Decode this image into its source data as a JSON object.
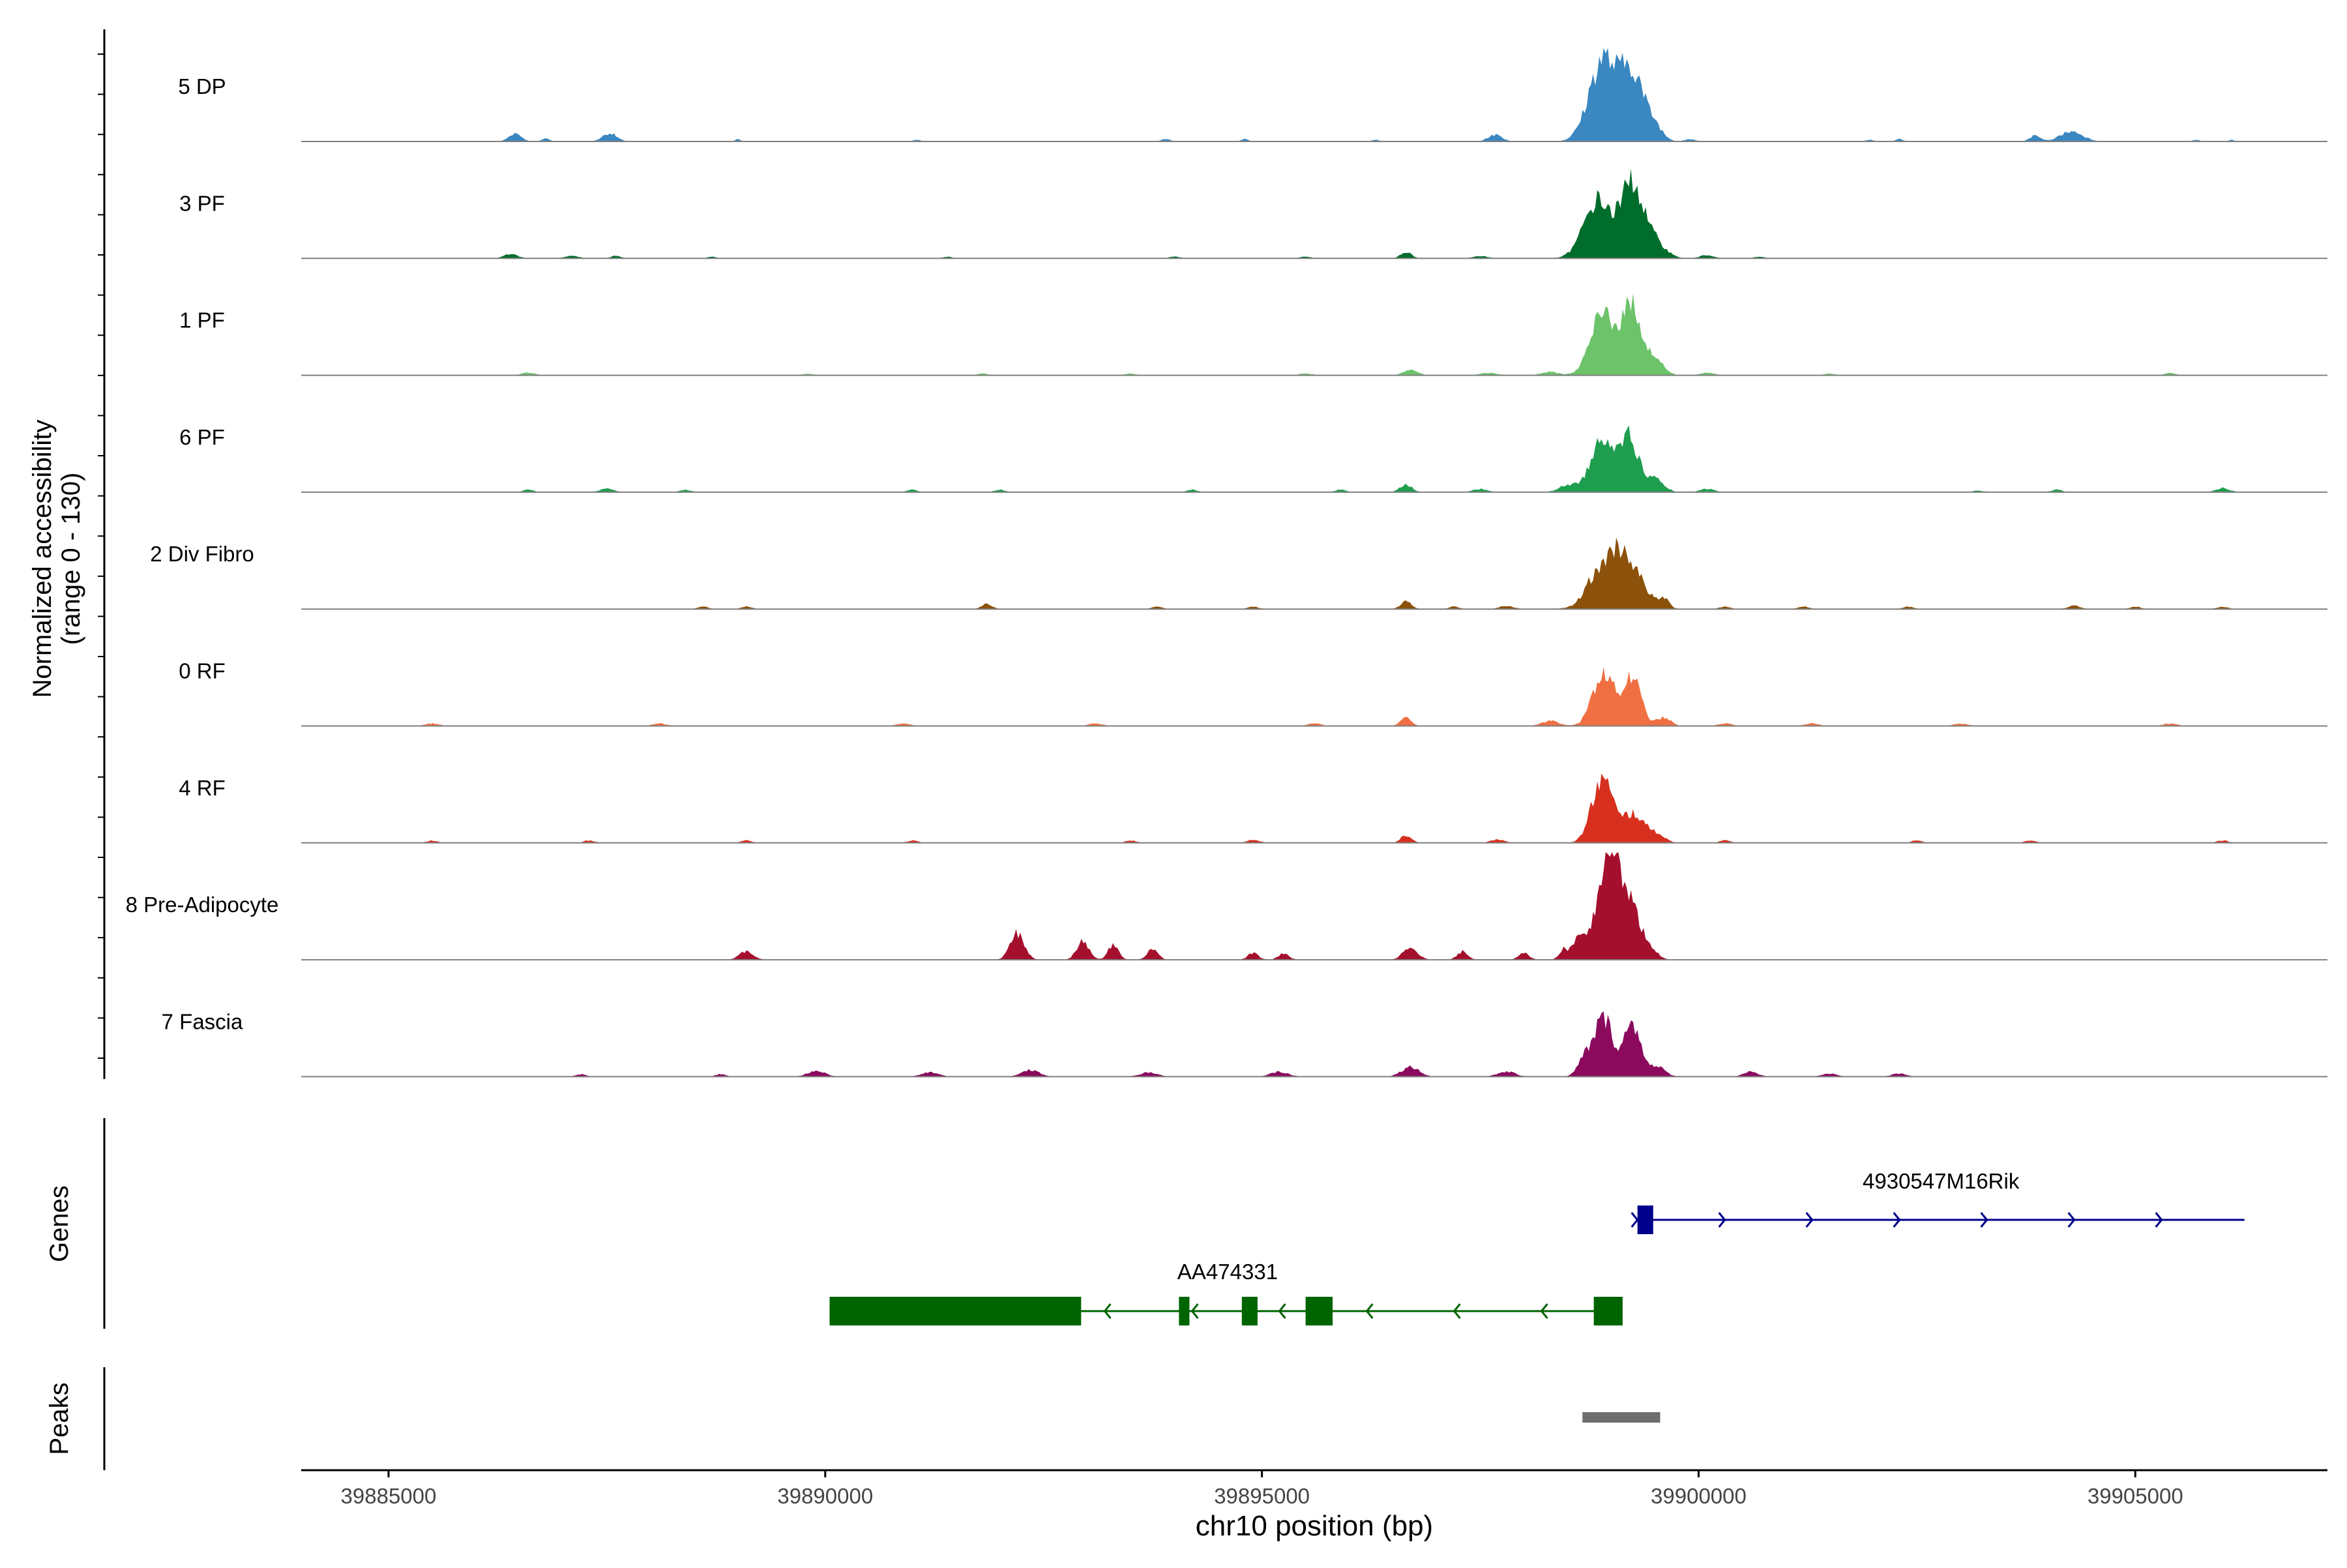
{
  "chart_data": {
    "type": "area",
    "title": "",
    "ylabel_line1": "Normalized accessibility",
    "ylabel_line2": "(range 0 - 130)",
    "genes_label": "Genes",
    "peaks_label": "Peaks",
    "xlabel": "chr10 position (bp)",
    "xlim": [
      39884000,
      39907200
    ],
    "ylim": [
      0,
      130
    ],
    "xticks": [
      39885000,
      39890000,
      39895000,
      39900000,
      39905000
    ],
    "tracks": [
      {
        "name": "5 DP",
        "color": "#3a87c1",
        "peaks": [
          [
            39898910,
            100,
            160
          ],
          [
            39899240,
            80,
            120
          ],
          [
            39899480,
            20,
            100
          ],
          [
            39886450,
            10,
            70
          ],
          [
            39887530,
            10,
            80
          ],
          [
            39897670,
            8,
            80
          ],
          [
            39904270,
            12,
            130
          ],
          [
            39903850,
            7,
            60
          ],
          [
            39886800,
            4,
            40
          ],
          [
            39889000,
            3,
            30
          ],
          [
            39891050,
            2,
            40
          ],
          [
            39893900,
            3,
            50
          ],
          [
            39894800,
            3,
            40
          ],
          [
            39896300,
            2,
            40
          ],
          [
            39899900,
            3,
            60
          ],
          [
            39901950,
            2,
            50
          ],
          [
            39902300,
            3,
            40
          ],
          [
            39905700,
            2,
            40
          ],
          [
            39906100,
            2,
            30
          ]
        ]
      },
      {
        "name": "3 PF",
        "color": "#006d2c",
        "peaks": [
          [
            39898850,
            70,
            160
          ],
          [
            39899240,
            90,
            120
          ],
          [
            39899500,
            20,
            120
          ],
          [
            39896650,
            8,
            60
          ],
          [
            39886400,
            5,
            80
          ],
          [
            39887100,
            3,
            80
          ],
          [
            39887600,
            3,
            60
          ],
          [
            39888700,
            2,
            50
          ],
          [
            39891400,
            2,
            50
          ],
          [
            39894000,
            2,
            60
          ],
          [
            39895500,
            2,
            60
          ],
          [
            39897500,
            3,
            80
          ],
          [
            39900100,
            4,
            80
          ],
          [
            39900700,
            2,
            60
          ]
        ]
      },
      {
        "name": "1 PF",
        "color": "#6cc36a",
        "peaks": [
          [
            39898910,
            75,
            140
          ],
          [
            39899240,
            80,
            110
          ],
          [
            39899500,
            18,
            100
          ],
          [
            39898300,
            4,
            100
          ],
          [
            39896700,
            7,
            80
          ],
          [
            39886600,
            3,
            80
          ],
          [
            39889800,
            2,
            60
          ],
          [
            39891800,
            2,
            60
          ],
          [
            39893500,
            2,
            60
          ],
          [
            39895500,
            2,
            80
          ],
          [
            39897600,
            3,
            100
          ],
          [
            39900100,
            3,
            80
          ],
          [
            39901500,
            2,
            60
          ],
          [
            39905400,
            3,
            60
          ]
        ]
      },
      {
        "name": "6 PF",
        "color": "#1f9e4f",
        "peaks": [
          [
            39898910,
            65,
            140
          ],
          [
            39899210,
            60,
            110
          ],
          [
            39899500,
            15,
            100
          ],
          [
            39898500,
            8,
            100
          ],
          [
            39896650,
            9,
            70
          ],
          [
            39887500,
            5,
            70
          ],
          [
            39886600,
            3,
            60
          ],
          [
            39888400,
            3,
            60
          ],
          [
            39891000,
            3,
            60
          ],
          [
            39892000,
            3,
            60
          ],
          [
            39894200,
            3,
            60
          ],
          [
            39895900,
            3,
            60
          ],
          [
            39897500,
            4,
            80
          ],
          [
            39900100,
            4,
            80
          ],
          [
            39903200,
            2,
            60
          ],
          [
            39904100,
            3,
            60
          ],
          [
            39906000,
            5,
            80
          ]
        ]
      },
      {
        "name": "2 Div Fibro",
        "color": "#8c510a",
        "peaks": [
          [
            39899080,
            75,
            220
          ],
          [
            39898750,
            10,
            80
          ],
          [
            39899610,
            10,
            50
          ],
          [
            39896650,
            10,
            60
          ],
          [
            39891850,
            6,
            60
          ],
          [
            39888600,
            3,
            60
          ],
          [
            39889100,
            3,
            60
          ],
          [
            39893800,
            3,
            60
          ],
          [
            39894900,
            3,
            60
          ],
          [
            39897200,
            3,
            60
          ],
          [
            39897800,
            4,
            80
          ],
          [
            39900300,
            3,
            60
          ],
          [
            39901200,
            3,
            60
          ],
          [
            39902400,
            3,
            60
          ],
          [
            39904300,
            4,
            70
          ],
          [
            39905000,
            3,
            60
          ],
          [
            39906000,
            3,
            60
          ]
        ]
      },
      {
        "name": "0 RF",
        "color": "#f07043",
        "peaks": [
          [
            39898910,
            65,
            120
          ],
          [
            39899240,
            58,
            100
          ],
          [
            39899600,
            10,
            80
          ],
          [
            39898300,
            6,
            100
          ],
          [
            39896650,
            10,
            60
          ],
          [
            39885500,
            3,
            80
          ],
          [
            39888100,
            3,
            80
          ],
          [
            39890900,
            3,
            80
          ],
          [
            39893100,
            3,
            80
          ],
          [
            39895600,
            3,
            80
          ],
          [
            39900300,
            3,
            80
          ],
          [
            39901300,
            3,
            80
          ],
          [
            39903000,
            3,
            80
          ],
          [
            39905400,
            3,
            80
          ]
        ]
      },
      {
        "name": "4 RF",
        "color": "#d7301f",
        "peaks": [
          [
            39898900,
            78,
            120
          ],
          [
            39899250,
            35,
            110
          ],
          [
            39899500,
            12,
            100
          ],
          [
            39896650,
            9,
            60
          ],
          [
            39885500,
            3,
            60
          ],
          [
            39887300,
            3,
            60
          ],
          [
            39889100,
            3,
            60
          ],
          [
            39891000,
            3,
            60
          ],
          [
            39893500,
            3,
            60
          ],
          [
            39894900,
            4,
            70
          ],
          [
            39897700,
            4,
            80
          ],
          [
            39900300,
            3,
            60
          ],
          [
            39902500,
            3,
            60
          ],
          [
            39903800,
            3,
            60
          ],
          [
            39906000,
            3,
            60
          ]
        ]
      },
      {
        "name": "8 Pre-Adipocyte",
        "color": "#a50f2e",
        "peaks": [
          [
            39898950,
            120,
            110
          ],
          [
            39899180,
            80,
            140
          ],
          [
            39898650,
            32,
            80
          ],
          [
            39898450,
            12,
            50
          ],
          [
            39892200,
            32,
            80
          ],
          [
            39892950,
            22,
            70
          ],
          [
            39893300,
            18,
            60
          ],
          [
            39893750,
            14,
            60
          ],
          [
            39896700,
            16,
            80
          ],
          [
            39889100,
            10,
            80
          ],
          [
            39897300,
            10,
            60
          ],
          [
            39898000,
            8,
            60
          ],
          [
            39894900,
            8,
            60
          ],
          [
            39895250,
            8,
            60
          ],
          [
            39899500,
            6,
            60
          ]
        ]
      },
      {
        "name": "7 Fascia",
        "color": "#8b0a5e",
        "peaks": [
          [
            39898910,
            70,
            100
          ],
          [
            39899240,
            62,
            110
          ],
          [
            39898700,
            22,
            80
          ],
          [
            39899550,
            10,
            80
          ],
          [
            39896700,
            12,
            100
          ],
          [
            39892350,
            8,
            100
          ],
          [
            39889900,
            7,
            100
          ],
          [
            39891200,
            5,
            100
          ],
          [
            39893700,
            5,
            100
          ],
          [
            39895200,
            6,
            100
          ],
          [
            39897800,
            6,
            100
          ],
          [
            39900600,
            6,
            80
          ],
          [
            39901500,
            4,
            80
          ],
          [
            39902300,
            4,
            80
          ],
          [
            39887200,
            3,
            60
          ],
          [
            39888800,
            3,
            60
          ]
        ]
      }
    ],
    "genes": [
      {
        "name": "4930547M16Rik",
        "strand": "+",
        "color": "#00008b",
        "start": 39899300,
        "end": 39906250,
        "exons": [
          [
            39899300,
            39899480
          ]
        ]
      },
      {
        "name": "AA474331",
        "strand": "-",
        "color": "#006400",
        "start": 39890050,
        "end": 39899130,
        "exons": [
          [
            39890050,
            39892930
          ],
          [
            39894050,
            39894170
          ],
          [
            39894770,
            39894950
          ],
          [
            39895500,
            39895810
          ],
          [
            39898800,
            39899130
          ]
        ]
      }
    ],
    "peaks_regions": [
      [
        39898670,
        39899560
      ]
    ]
  }
}
